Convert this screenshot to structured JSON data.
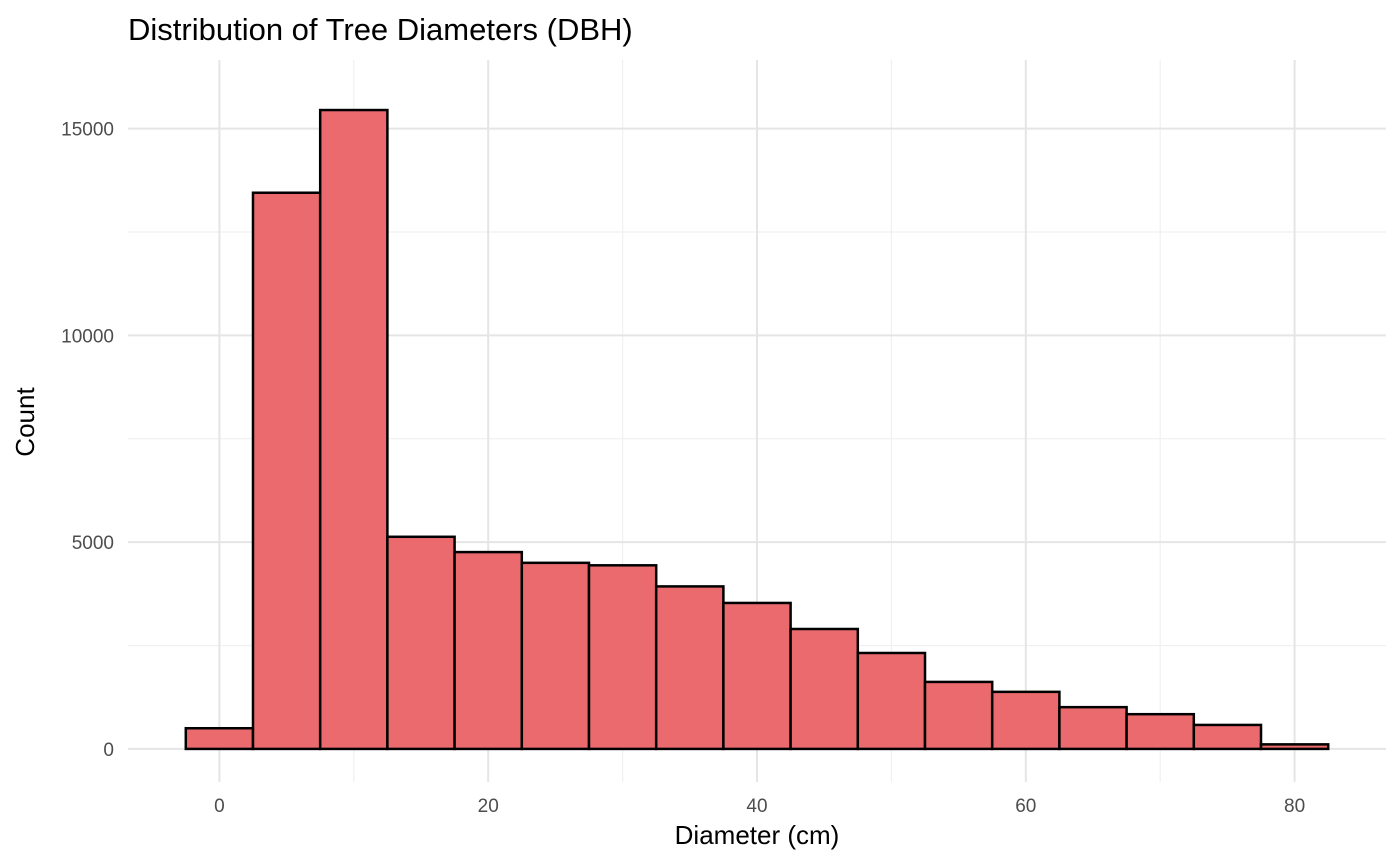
{
  "chart_data": {
    "type": "bar",
    "title": "Distribution of Tree Diameters (DBH)",
    "xlabel": "Diameter (cm)",
    "ylabel": "Count",
    "bin_width": 5,
    "bins": [
      {
        "start": -2.5,
        "end": 2.5,
        "count": 500
      },
      {
        "start": 2.5,
        "end": 7.5,
        "count": 13450
      },
      {
        "start": 7.5,
        "end": 12.5,
        "count": 15450
      },
      {
        "start": 12.5,
        "end": 17.5,
        "count": 5130
      },
      {
        "start": 17.5,
        "end": 22.5,
        "count": 4760
      },
      {
        "start": 22.5,
        "end": 27.5,
        "count": 4500
      },
      {
        "start": 27.5,
        "end": 32.5,
        "count": 4440
      },
      {
        "start": 32.5,
        "end": 37.5,
        "count": 3930
      },
      {
        "start": 37.5,
        "end": 42.5,
        "count": 3530
      },
      {
        "start": 42.5,
        "end": 47.5,
        "count": 2900
      },
      {
        "start": 47.5,
        "end": 52.5,
        "count": 2320
      },
      {
        "start": 52.5,
        "end": 57.5,
        "count": 1620
      },
      {
        "start": 57.5,
        "end": 62.5,
        "count": 1380
      },
      {
        "start": 62.5,
        "end": 67.5,
        "count": 1010
      },
      {
        "start": 67.5,
        "end": 72.5,
        "count": 840
      },
      {
        "start": 72.5,
        "end": 77.5,
        "count": 580
      },
      {
        "start": 77.5,
        "end": 82.5,
        "count": 110
      }
    ],
    "xlim": [
      -6.8,
      86.8
    ],
    "ylim": [
      -800,
      16660
    ],
    "x_ticks": [
      0,
      20,
      40,
      60,
      80
    ],
    "x_tick_labels": [
      "0",
      "20",
      "40",
      "60",
      "80"
    ],
    "x_minor_ticks": [
      10,
      30,
      50,
      70
    ],
    "y_ticks": [
      0,
      5000,
      10000,
      15000
    ],
    "y_tick_labels": [
      "0",
      "5000",
      "10000",
      "15000"
    ],
    "y_minor_ticks": [
      2500,
      7500,
      12500
    ],
    "grid": true,
    "legend": "none",
    "colors": {
      "bar_fill": "#eb6a6d",
      "bar_outline": "#000000",
      "grid": "#e5e5e5",
      "background": "#ffffff"
    }
  }
}
